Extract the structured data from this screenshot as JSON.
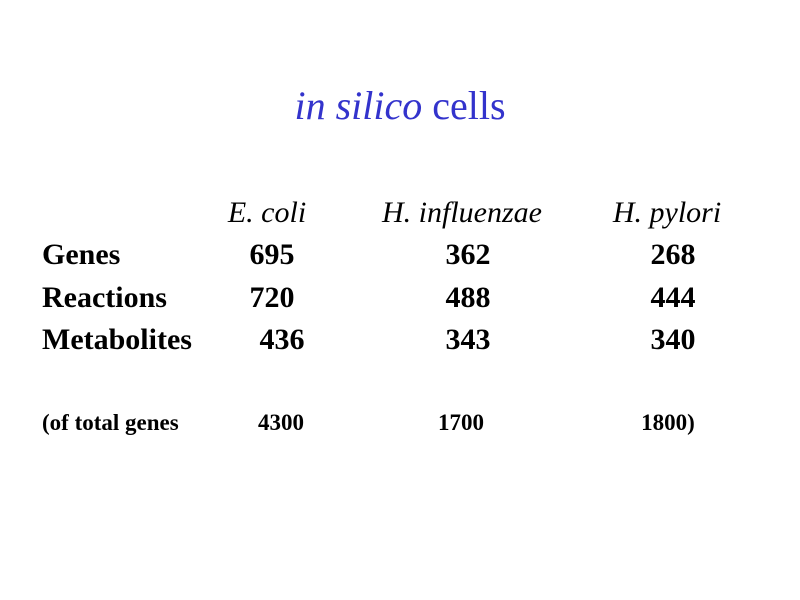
{
  "title": {
    "italic": "in silico",
    "regular": "cells"
  },
  "table": {
    "header": [
      "E. coli",
      "H. influenzae",
      "H. pylori"
    ],
    "rows": [
      [
        "Genes",
        695,
        362,
        268
      ],
      [
        "Reactions",
        720,
        488,
        444
      ],
      [
        "Metabolites",
        436,
        343,
        340
      ]
    ],
    "footnote": [
      "(of total genes",
      4300,
      1700,
      "1800)"
    ]
  }
}
